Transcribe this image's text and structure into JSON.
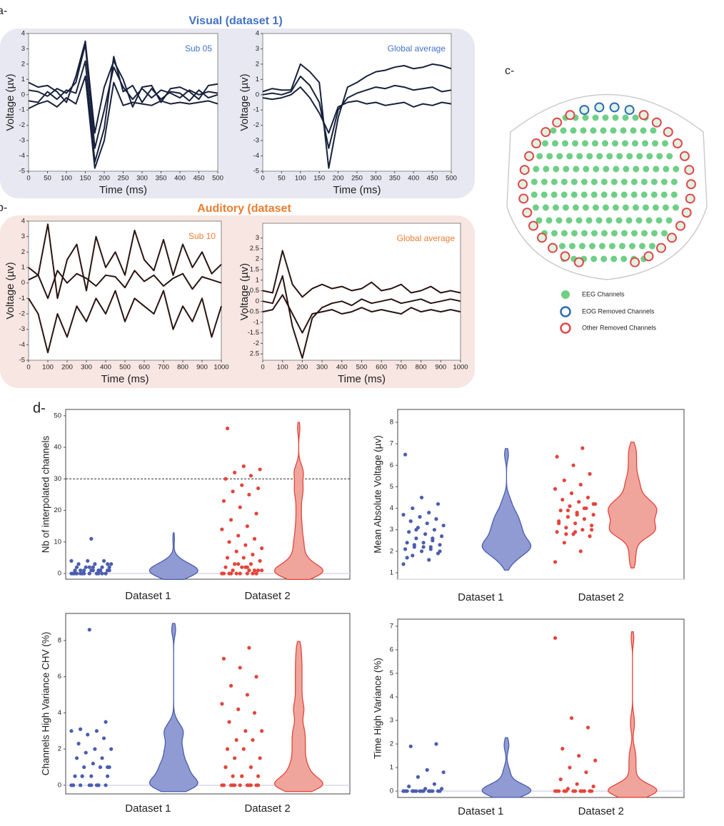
{
  "labels": {
    "a": "a-",
    "a_title": "Visual (dataset 1)",
    "b": "b-",
    "b_title": "Auditory (dataset",
    "d": "d-"
  },
  "panel_c": {
    "label": "c-",
    "legend": [
      "EEG Channels",
      "EOG Removed Channels",
      "Other Removed Channels"
    ]
  },
  "chart_data": [
    {
      "type": "line",
      "annotation": "Sub 05",
      "xlabel": "Time (ms)",
      "ylabel": "Voltage (µv)",
      "color": "#17213c",
      "x": [
        0,
        25,
        50,
        75,
        100,
        125,
        150,
        175,
        200,
        225,
        250,
        275,
        300,
        325,
        350,
        375,
        400,
        425,
        450,
        475,
        500
      ],
      "series": [
        {
          "values": [
            0.3,
            0.2,
            -0.1,
            0.4,
            0.1,
            0.8,
            3.3,
            -3.5,
            -1,
            1.8,
            0.5,
            -0.3,
            0.4,
            -0.2,
            0.3,
            0.1,
            -0.2,
            0.3,
            0,
            0.2,
            0.1
          ]
        },
        {
          "values": [
            -0.4,
            -0.5,
            0.2,
            -0.3,
            0.3,
            0.1,
            2.2,
            -4.4,
            -2.2,
            2.5,
            0.2,
            0.6,
            -0.5,
            0.4,
            -0.3,
            0.2,
            0.1,
            -0.4,
            0.3,
            -0.2,
            0
          ]
        },
        {
          "values": [
            0.8,
            0.5,
            0.6,
            0.2,
            -0.5,
            1.2,
            3.5,
            -2.5,
            0.5,
            2.2,
            1,
            -0.8,
            0.5,
            0.6,
            -0.5,
            0.4,
            0.5,
            0.2,
            -0.3,
            0.6,
            0.7
          ]
        },
        {
          "values": [
            -0.9,
            -0.6,
            -0.4,
            -0.8,
            -0.2,
            -0.6,
            1.2,
            -4.8,
            -3,
            0.8,
            -0.7,
            -0.5,
            -0.6,
            -0.7,
            -0.4,
            -0.6,
            -0.5,
            -0.6,
            -0.5,
            -0.4,
            -0.6
          ]
        }
      ],
      "xlim": [
        0,
        500
      ],
      "xticks": [
        0,
        50,
        100,
        150,
        200,
        250,
        300,
        350,
        400,
        450,
        500
      ],
      "ylim": [
        -5,
        4
      ],
      "yticks": [
        -5,
        -4,
        -3,
        -2,
        -1,
        0,
        1,
        2,
        3,
        4
      ]
    },
    {
      "type": "line",
      "annotation": "Global average",
      "xlabel": "Time (ms)",
      "ylabel": "Voltage (µv)",
      "color": "#17213c",
      "x": [
        0,
        25,
        50,
        75,
        100,
        125,
        150,
        175,
        200,
        225,
        250,
        275,
        300,
        325,
        350,
        375,
        400,
        425,
        450,
        475,
        500
      ],
      "series": [
        {
          "values": [
            0.2,
            0.4,
            0.3,
            0.3,
            2,
            1.5,
            0.8,
            -4.8,
            -1.5,
            0.5,
            0.8,
            1.2,
            1.5,
            1.6,
            1.8,
            1.9,
            1.7,
            1.8,
            2,
            1.9,
            1.7
          ]
        },
        {
          "values": [
            0,
            0.1,
            0,
            0.2,
            1.2,
            0.6,
            -0.5,
            -3.5,
            -1,
            -0.2,
            0.1,
            0.3,
            0.5,
            0.4,
            0.6,
            0.5,
            0.3,
            0.4,
            0.5,
            0.2,
            0.3
          ]
        },
        {
          "values": [
            -0.2,
            -0.3,
            -0.2,
            0,
            0.5,
            -0.2,
            -1.2,
            -2.5,
            -0.8,
            -0.5,
            -0.4,
            -0.6,
            -0.5,
            -0.7,
            -0.6,
            -0.5,
            -0.8,
            -0.6,
            -0.7,
            -0.5,
            -0.6
          ]
        }
      ],
      "xlim": [
        0,
        500
      ],
      "xticks": [
        0,
        50,
        100,
        150,
        200,
        250,
        300,
        350,
        400,
        450,
        500
      ],
      "ylim": [
        -5,
        4
      ],
      "yticks": [
        -5,
        -4,
        -3,
        -2,
        -1,
        0,
        1,
        2,
        3,
        4
      ]
    },
    {
      "type": "line",
      "annotation": "Sub 10",
      "xlabel": "Time (ms)",
      "ylabel": "Voltage (µv)",
      "color": "#2a1410",
      "x": [
        0,
        50,
        100,
        150,
        200,
        250,
        300,
        350,
        400,
        450,
        500,
        550,
        600,
        650,
        700,
        750,
        800,
        850,
        900,
        950,
        1000
      ],
      "series": [
        {
          "values": [
            1,
            0.5,
            3.8,
            -1,
            1.5,
            2.5,
            -0.5,
            3,
            1,
            2,
            0.5,
            3.4,
            1.5,
            0.8,
            2.8,
            0.5,
            2.5,
            1,
            2,
            0.6,
            1.2
          ]
        },
        {
          "values": [
            -1,
            -2,
            -4.5,
            -2,
            -3.5,
            -1.5,
            -2.5,
            -1,
            -2,
            -0.5,
            -2.5,
            -1,
            -1.5,
            -2,
            -0.5,
            -3,
            -1.5,
            -2.5,
            -1,
            -3.5,
            -1.5
          ]
        },
        {
          "values": [
            0.2,
            0.5,
            -1,
            0.8,
            0,
            0.6,
            0.3,
            -0.2,
            0.5,
            0.4,
            -0.3,
            0.8,
            0.1,
            0.5,
            -0.2,
            0.3,
            0.6,
            -0.4,
            0.4,
            0.2,
            0
          ]
        }
      ],
      "xlim": [
        0,
        1000
      ],
      "xticks": [
        0,
        100,
        200,
        300,
        400,
        500,
        600,
        700,
        800,
        900,
        1000
      ],
      "ylim": [
        -5,
        4
      ],
      "yticks": [
        -5,
        -4,
        -3,
        -2,
        -1,
        0,
        1,
        2,
        3,
        4
      ]
    },
    {
      "type": "line",
      "annotation": "Global average",
      "xlabel": "Time (ms)",
      "ylabel": "Voltage (µv)",
      "color": "#2a1410",
      "x": [
        0,
        50,
        100,
        150,
        200,
        250,
        300,
        350,
        400,
        450,
        500,
        550,
        600,
        650,
        700,
        750,
        800,
        850,
        900,
        950,
        1000
      ],
      "series": [
        {
          "values": [
            0.5,
            0.4,
            2.4,
            0.8,
            0.2,
            0.6,
            0.8,
            0.6,
            0.7,
            0.5,
            0.6,
            0.9,
            0.5,
            0.6,
            0.8,
            0.4,
            0.5,
            0.7,
            0.4,
            0.5,
            0.4
          ]
        },
        {
          "values": [
            0,
            -0.1,
            1.2,
            -1.2,
            -2.7,
            -0.8,
            -0.3,
            -0.1,
            0,
            -0.2,
            0.1,
            -0.1,
            0,
            0.1,
            -0.1,
            0,
            0.1,
            -0.1,
            0,
            0.1,
            0
          ]
        },
        {
          "values": [
            -0.5,
            -0.4,
            0.3,
            -0.6,
            -1.5,
            -0.6,
            -0.5,
            -0.4,
            -0.6,
            -0.5,
            -0.3,
            -0.5,
            -0.4,
            -0.5,
            -0.6,
            -0.3,
            -0.5,
            -0.4,
            -0.5,
            -0.4,
            -0.5
          ]
        }
      ],
      "xlim": [
        0,
        1000
      ],
      "xticks": [
        0,
        100,
        200,
        300,
        400,
        500,
        600,
        700,
        800,
        900,
        1000
      ],
      "ylim": [
        -2.8,
        3.7
      ],
      "yticks": [
        {
          "value": -2.5,
          "label": "2.5"
        },
        -2,
        -1.5,
        -1,
        -0.5,
        0,
        0.5,
        1,
        1.5,
        2,
        2.5,
        3
      ]
    },
    {
      "type": "violin",
      "ylabel": "Nb of interpolated channels",
      "categories": [
        "Dataset 1",
        "Dataset 2"
      ],
      "reference_line": 30,
      "series": [
        {
          "color": "#4a5db0",
          "fill": "#8f9bd2",
          "values": [
            0,
            0,
            0,
            0,
            0,
            0,
            0,
            0,
            1,
            1,
            1,
            1,
            1,
            1,
            2,
            2,
            2,
            2,
            3,
            3,
            3,
            4,
            4,
            4,
            0,
            1,
            0,
            2,
            0,
            1,
            0,
            3,
            11,
            0,
            1,
            0,
            2,
            1,
            0,
            0
          ]
        },
        {
          "color": "#e5443a",
          "fill": "#efa59c",
          "values": [
            0,
            0,
            0,
            0,
            0,
            0,
            1,
            1,
            1,
            2,
            2,
            3,
            3,
            4,
            5,
            5,
            6,
            7,
            8,
            9,
            10,
            11,
            12,
            14,
            15,
            17,
            19,
            21,
            23,
            25,
            26,
            27,
            28,
            30,
            31,
            32,
            33,
            34,
            46,
            0,
            0,
            1,
            2,
            0,
            1,
            3,
            0,
            2,
            0,
            0
          ]
        }
      ],
      "ylim": [
        -1.8,
        52
      ],
      "yticks": [
        0,
        10,
        20,
        30,
        40,
        50
      ]
    },
    {
      "type": "violin",
      "ylabel": "Mean Absolute Voltage (µv)",
      "categories": [
        "Dataset 1",
        "Dataset 2"
      ],
      "series": [
        {
          "color": "#4a5db0",
          "fill": "#8f9bd2",
          "values": [
            1.4,
            1.6,
            1.8,
            1.9,
            2,
            2.1,
            2.2,
            2.2,
            2.3,
            2.4,
            2.4,
            2.5,
            2.6,
            2.7,
            2.8,
            2.9,
            3,
            3.1,
            3.2,
            3.3,
            3.4,
            3.5,
            3.6,
            3.7,
            3.8,
            4,
            4.2,
            4.5,
            6.5,
            2.1,
            2.3,
            2,
            2.2,
            1.7,
            2.6,
            3
          ]
        },
        {
          "color": "#e5443a",
          "fill": "#efa59c",
          "values": [
            1.5,
            2,
            2.4,
            2.7,
            2.8,
            2.9,
            3,
            3.1,
            3.2,
            3.3,
            3.4,
            3.5,
            3.6,
            3.7,
            3.8,
            3.9,
            4,
            4.1,
            4.2,
            4.3,
            4.4,
            4.5,
            4.7,
            4.9,
            5.1,
            5.3,
            5.6,
            6,
            6.4,
            6.8,
            2.8,
            3,
            2.9,
            3.3,
            4,
            3.9,
            4.2,
            3.7
          ]
        }
      ],
      "ylim": [
        0.7,
        8.6
      ],
      "yticks": [
        1,
        2,
        3,
        4,
        5,
        6,
        7,
        8
      ]
    },
    {
      "type": "violin",
      "ylabel": "Channels High Variance CHV (%)",
      "categories": [
        "Dataset 1",
        "Dataset 2"
      ],
      "series": [
        {
          "color": "#4a5db0",
          "fill": "#8f9bd2",
          "values": [
            0,
            0,
            0,
            0,
            0,
            0,
            0,
            0.5,
            0.5,
            0.5,
            0.5,
            1,
            1,
            1,
            1.2,
            1.5,
            1.5,
            1.8,
            2,
            2,
            2.3,
            2.6,
            2.8,
            3,
            3,
            3.1,
            3.5,
            8.6,
            0,
            0,
            0.5,
            1,
            0
          ]
        },
        {
          "color": "#e5443a",
          "fill": "#efa59c",
          "values": [
            0,
            0,
            0,
            0,
            0,
            0,
            0,
            0.5,
            0.5,
            0.5,
            1,
            1,
            1.5,
            1.5,
            2,
            2,
            2.5,
            2.5,
            3,
            3,
            3.5,
            4,
            4.2,
            4.5,
            5,
            5.5,
            6,
            6.5,
            7,
            7.6,
            0,
            0,
            0.5,
            1,
            0,
            0
          ]
        }
      ],
      "ylim": [
        -0.48,
        9.5
      ],
      "yticks": [
        0,
        2,
        4,
        6,
        8
      ]
    },
    {
      "type": "violin",
      "ylabel": "Time High Variance (%)",
      "categories": [
        "Dataset 1",
        "Dataset 2"
      ],
      "series": [
        {
          "color": "#4a5db0",
          "fill": "#8f9bd2",
          "values": [
            0,
            0,
            0,
            0,
            0,
            0,
            0,
            0,
            0,
            0,
            0,
            0,
            0,
            0.1,
            0.1,
            0.2,
            0.3,
            0.6,
            0.8,
            0.9,
            1.9,
            2,
            0,
            0,
            0,
            0
          ]
        },
        {
          "color": "#e5443a",
          "fill": "#efa59c",
          "values": [
            0,
            0,
            0,
            0,
            0,
            0,
            0,
            0,
            0,
            0,
            0,
            0,
            0.1,
            0.2,
            0.3,
            0.5,
            0.8,
            1,
            1.3,
            1.5,
            1.8,
            2.7,
            3.1,
            6.5,
            0,
            0,
            0,
            0
          ]
        }
      ],
      "ylim": [
        -0.27,
        7.3
      ],
      "yticks": [
        0,
        1,
        2,
        3,
        4,
        5,
        6,
        7
      ]
    }
  ]
}
